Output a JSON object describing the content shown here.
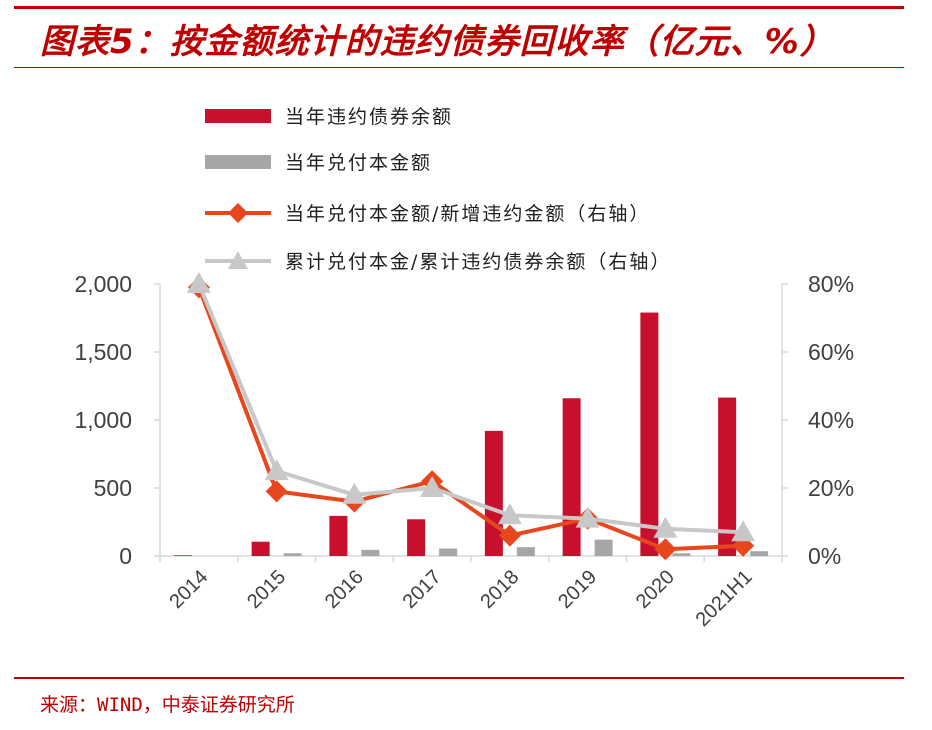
{
  "header": {
    "title": "图表5：按金额统计的违约债券回收率（亿元、%）"
  },
  "footer": {
    "source": "来源：WIND，中泰证券研究所"
  },
  "colors": {
    "default_bar": "#c8102e",
    "repaid_bar": "#a6a6a6",
    "ratio_line": "#e8471d",
    "cumulative_line": "#c8c8c8",
    "accent": "#c00000"
  },
  "chart_data": {
    "type": "bar",
    "title": "",
    "xlabel": "",
    "ylabel": "",
    "categories": [
      "2014",
      "2015",
      "2016",
      "2017",
      "2018",
      "2019",
      "2020",
      "2021H1"
    ],
    "ylim": [
      0,
      2000
    ],
    "y2lim": [
      0,
      0.8
    ],
    "y_ticks": [
      "0",
      "500",
      "1,000",
      "1,500",
      "2,000"
    ],
    "y2_ticks": [
      "0%",
      "20%",
      "40%",
      "60%",
      "80%"
    ],
    "grid": false,
    "legend_position": "top",
    "series": [
      {
        "name": "当年违约债券余额",
        "type": "bar",
        "axis": "left",
        "values": [
          5,
          105,
          295,
          270,
          920,
          1160,
          1790,
          1165
        ]
      },
      {
        "name": "当年兑付本金额",
        "type": "bar",
        "axis": "left",
        "values": [
          0,
          20,
          45,
          55,
          65,
          120,
          20,
          35
        ]
      },
      {
        "name": "当年兑付本金额/新增违约金额（右轴）",
        "type": "line",
        "marker": "diamond",
        "axis": "right",
        "values": [
          0.79,
          0.19,
          0.16,
          0.22,
          0.06,
          0.11,
          0.02,
          0.03
        ]
      },
      {
        "name": "累计兑付本金/累计违约债券余额（右轴）",
        "type": "line",
        "marker": "triangle",
        "axis": "right",
        "values": [
          0.8,
          0.25,
          0.18,
          0.2,
          0.12,
          0.11,
          0.08,
          0.07
        ]
      }
    ]
  }
}
